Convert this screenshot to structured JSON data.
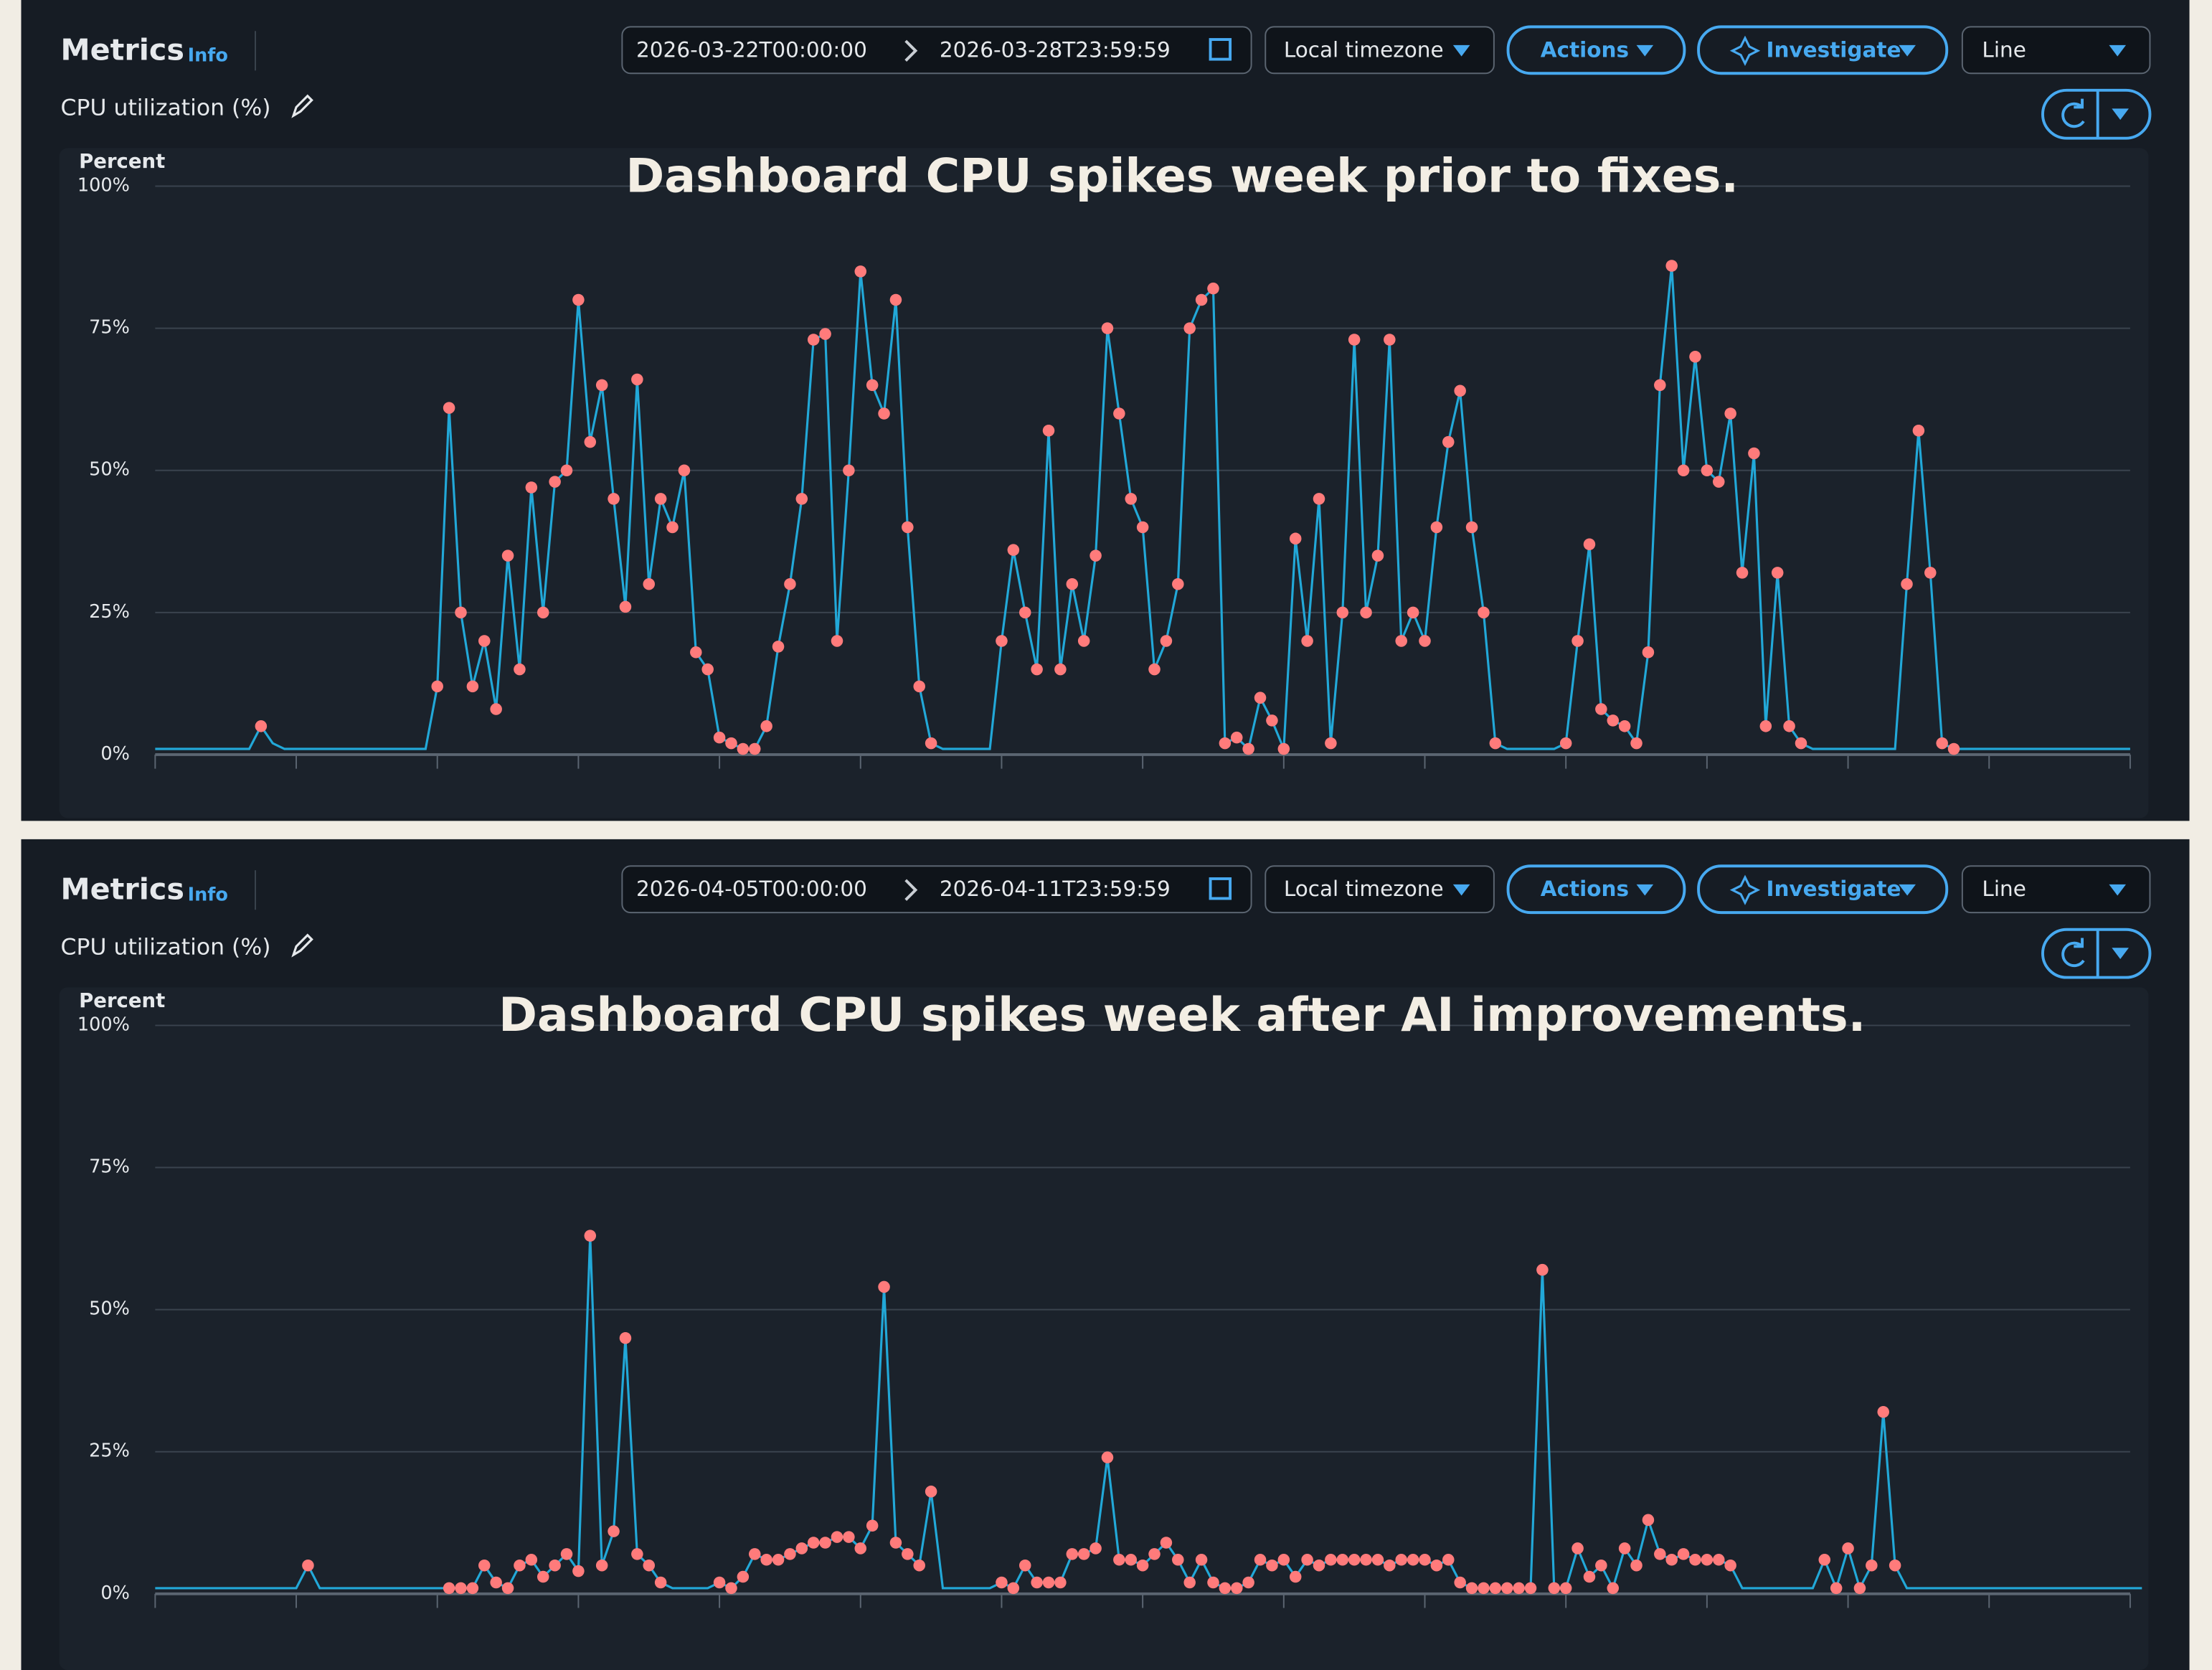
{
  "panels": [
    {
      "header": {
        "title": "Metrics",
        "info": "Info",
        "start": "2026-03-22T00:00:00",
        "end": "2026-03-28T23:59:59",
        "timezone": "Local timezone",
        "actions": "Actions",
        "investigate": "Investigate",
        "view": "Line",
        "metric": "CPU utilization (%)"
      }
    },
    {
      "header": {
        "title": "Metrics",
        "info": "Info",
        "start": "2026-04-05T00:00:00",
        "end": "2026-04-11T23:59:59",
        "timezone": "Local timezone",
        "actions": "Actions",
        "investigate": "Investigate",
        "view": "Line",
        "metric": "CPU utilization (%)"
      }
    }
  ],
  "chart_data": [
    {
      "type": "line",
      "title": "Dashboard CPU spikes week prior to fixes.",
      "y_label": "Percent",
      "color": "#22a8d8",
      "highlight_color": "#ff7b7b",
      "grid": true,
      "xlim": [
        0,
        168
      ],
      "xticks": [
        0,
        12,
        24,
        36,
        48,
        60,
        72,
        84,
        96,
        108,
        120,
        132,
        144,
        156,
        168
      ],
      "ylim": [
        0,
        100
      ],
      "yticks": [
        {
          "value": 0,
          "label": "0%"
        },
        {
          "value": 25,
          "label": "25%"
        },
        {
          "value": 50,
          "label": "50%"
        },
        {
          "value": 75,
          "label": "75%"
        },
        {
          "value": 100,
          "label": "100%"
        }
      ],
      "values": [
        1,
        1,
        1,
        1,
        1,
        1,
        1,
        1,
        1,
        5,
        2,
        1,
        1,
        1,
        1,
        1,
        1,
        1,
        1,
        1,
        1,
        1,
        1,
        1,
        12,
        61,
        25,
        12,
        20,
        8,
        35,
        15,
        47,
        25,
        48,
        50,
        80,
        55,
        65,
        45,
        26,
        66,
        30,
        45,
        40,
        50,
        18,
        15,
        3,
        2,
        1,
        1,
        5,
        19,
        30,
        45,
        73,
        74,
        20,
        50,
        85,
        65,
        60,
        80,
        40,
        12,
        2,
        1,
        1,
        1,
        1,
        1,
        20,
        36,
        25,
        15,
        57,
        15,
        30,
        20,
        35,
        75,
        60,
        45,
        40,
        15,
        20,
        30,
        75,
        80,
        82,
        2,
        3,
        1,
        10,
        6,
        1,
        38,
        20,
        45,
        2,
        25,
        73,
        25,
        35,
        73,
        20,
        25,
        20,
        40,
        55,
        64,
        40,
        25,
        2,
        1,
        1,
        1,
        1,
        1,
        2,
        20,
        37,
        8,
        6,
        5,
        2,
        18,
        65,
        86,
        50,
        70,
        50,
        48,
        60,
        32,
        53,
        5,
        32,
        5,
        2,
        1,
        1,
        1,
        1,
        1,
        1,
        1,
        1,
        30,
        57,
        32,
        2,
        1,
        1,
        1,
        1,
        1,
        1,
        1,
        1,
        1,
        1,
        1,
        1,
        1,
        1,
        1,
        1
      ],
      "highlight_values": [
        null,
        null,
        null,
        null,
        null,
        null,
        null,
        null,
        null,
        5,
        null,
        null,
        null,
        null,
        null,
        null,
        null,
        null,
        null,
        null,
        null,
        null,
        null,
        null,
        12,
        61,
        25,
        12,
        20,
        8,
        35,
        15,
        47,
        25,
        48,
        50,
        80,
        55,
        65,
        45,
        26,
        66,
        30,
        45,
        40,
        50,
        18,
        15,
        3,
        2,
        1,
        1,
        5,
        19,
        30,
        45,
        73,
        74,
        20,
        50,
        85,
        65,
        60,
        80,
        40,
        12,
        2,
        null,
        null,
        null,
        null,
        null,
        20,
        36,
        25,
        15,
        57,
        15,
        30,
        20,
        35,
        75,
        60,
        45,
        40,
        15,
        20,
        30,
        75,
        80,
        82,
        2,
        3,
        1,
        10,
        6,
        1,
        38,
        20,
        45,
        2,
        25,
        73,
        25,
        35,
        73,
        20,
        25,
        20,
        40,
        55,
        64,
        40,
        25,
        2,
        null,
        null,
        null,
        null,
        null,
        2,
        20,
        37,
        8,
        6,
        5,
        2,
        18,
        65,
        86,
        50,
        70,
        50,
        48,
        60,
        32,
        53,
        5,
        32,
        5,
        2,
        null,
        null,
        null,
        null,
        null,
        null,
        null,
        null,
        30,
        57,
        32,
        2,
        1,
        null,
        null,
        null,
        null,
        null,
        null,
        null,
        null,
        null,
        null,
        null,
        null,
        null,
        null,
        null
      ]
    },
    {
      "type": "line",
      "title": "Dashboard CPU spikes week after AI improvements.",
      "y_label": "Percent",
      "color": "#22a8d8",
      "highlight_color": "#ff7b7b",
      "grid": true,
      "xlim": [
        0,
        168
      ],
      "xticks": [
        0,
        12,
        24,
        36,
        48,
        60,
        72,
        84,
        96,
        108,
        120,
        132,
        144,
        156,
        168
      ],
      "ylim": [
        0,
        100
      ],
      "yticks": [
        {
          "value": 0,
          "label": "0%"
        },
        {
          "value": 25,
          "label": "25%"
        },
        {
          "value": 50,
          "label": "50%"
        },
        {
          "value": 75,
          "label": "75%"
        },
        {
          "value": 100,
          "label": "100%"
        }
      ],
      "values": [
        1,
        1,
        1,
        1,
        1,
        1,
        1,
        1,
        1,
        1,
        1,
        1,
        1,
        5,
        1,
        1,
        1,
        1,
        1,
        1,
        1,
        1,
        1,
        1,
        1,
        1,
        1,
        1,
        5,
        2,
        1,
        5,
        6,
        3,
        5,
        7,
        4,
        63,
        5,
        11,
        45,
        7,
        5,
        2,
        1,
        1,
        1,
        1,
        2,
        1,
        3,
        7,
        6,
        6,
        7,
        8,
        9,
        9,
        10,
        10,
        8,
        12,
        54,
        9,
        7,
        5,
        18,
        1,
        1,
        1,
        1,
        1,
        2,
        1,
        5,
        2,
        2,
        2,
        7,
        7,
        8,
        24,
        6,
        6,
        5,
        7,
        9,
        6,
        2,
        6,
        2,
        1,
        1,
        2,
        6,
        5,
        6,
        3,
        6,
        5,
        6,
        6,
        6,
        6,
        6,
        5,
        6,
        6,
        6,
        5,
        6,
        2,
        1,
        1,
        1,
        1,
        1,
        1,
        57,
        1,
        1,
        8,
        3,
        5,
        1,
        8,
        5,
        13,
        7,
        6,
        7,
        6,
        6,
        6,
        5,
        1,
        1,
        1,
        1,
        1,
        1,
        1,
        6,
        1,
        8,
        1,
        5,
        32,
        5,
        1,
        1,
        1,
        1,
        1,
        1,
        1,
        1,
        1,
        1,
        1,
        1,
        1,
        1,
        1,
        1,
        1,
        1,
        1,
        1,
        1
      ],
      "highlight_values": [
        null,
        null,
        null,
        null,
        null,
        null,
        null,
        null,
        null,
        null,
        null,
        null,
        null,
        5,
        null,
        null,
        null,
        null,
        null,
        null,
        null,
        null,
        null,
        null,
        null,
        1,
        1,
        1,
        5,
        2,
        1,
        5,
        6,
        3,
        5,
        7,
        4,
        63,
        5,
        11,
        45,
        7,
        5,
        2,
        null,
        null,
        null,
        null,
        2,
        1,
        3,
        7,
        6,
        6,
        7,
        8,
        9,
        9,
        10,
        10,
        8,
        12,
        54,
        9,
        7,
        5,
        18,
        null,
        null,
        null,
        null,
        null,
        2,
        1,
        5,
        2,
        2,
        2,
        7,
        7,
        8,
        24,
        6,
        6,
        5,
        7,
        9,
        6,
        2,
        6,
        2,
        1,
        1,
        2,
        6,
        5,
        6,
        3,
        6,
        5,
        6,
        6,
        6,
        6,
        6,
        5,
        6,
        6,
        6,
        5,
        6,
        2,
        1,
        1,
        1,
        1,
        1,
        1,
        57,
        1,
        1,
        8,
        3,
        5,
        1,
        8,
        5,
        13,
        7,
        6,
        7,
        6,
        6,
        6,
        5,
        null,
        null,
        null,
        null,
        null,
        null,
        null,
        6,
        1,
        8,
        1,
        5,
        32,
        5,
        null,
        null,
        null,
        null,
        null,
        null,
        null,
        null,
        null,
        null,
        null,
        null,
        null,
        null,
        null,
        null,
        null,
        null,
        null,
        null,
        null
      ]
    }
  ]
}
